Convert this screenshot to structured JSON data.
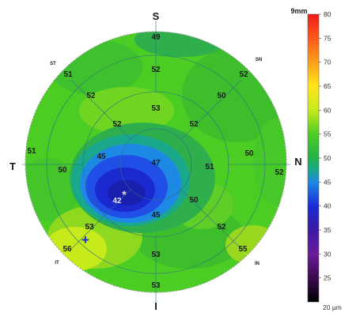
{
  "chart_data": {
    "type": "heatmap",
    "title": "",
    "scan_size_label": "9mm",
    "unit_label": "20 µm",
    "orientation": {
      "superior": "S",
      "inferior": "I",
      "temporal": "T",
      "nasal": "N",
      "superotemporal": "ST",
      "superonasal": "SN",
      "inferotemporal": "IT",
      "inferonasal": "IN"
    },
    "sector_values": {
      "outer_s": "49",
      "mid_s_upper": "52",
      "inner_s": "53",
      "ring_s": "52",
      "ring_s2": "52",
      "mid_st": "52",
      "outer_st": "51",
      "mid_sn": "50",
      "outer_sn": "52",
      "outer_t": "51",
      "mid_t": "50",
      "inner_t": "45",
      "center": "42",
      "inner_s_center": "47",
      "inner_n": "51",
      "mid_n": "50",
      "outer_n": "52",
      "inner_i": "45",
      "inner_n2": "50",
      "mid_it": "53",
      "outer_it": "56",
      "mid_in": "52",
      "outer_in": "55",
      "mid_i": "53",
      "outer_i": "53"
    },
    "colorbar": {
      "min": 20,
      "max": 80,
      "ticks": [
        "80",
        "75",
        "70",
        "65",
        "60",
        "55",
        "50",
        "45",
        "40",
        "35",
        "30",
        "25"
      ],
      "stops": [
        {
          "value": 20,
          "color": "#000000"
        },
        {
          "value": 25,
          "color": "#3a0a4e"
        },
        {
          "value": 30,
          "color": "#6a1b9a"
        },
        {
          "value": 35,
          "color": "#3b1aa6"
        },
        {
          "value": 40,
          "color": "#1a2bd6"
        },
        {
          "value": 45,
          "color": "#1e88e5"
        },
        {
          "value": 47.5,
          "color": "#1aa88c"
        },
        {
          "value": 50,
          "color": "#22b34a"
        },
        {
          "value": 55,
          "color": "#4ccd23"
        },
        {
          "value": 60,
          "color": "#c6ea1a"
        },
        {
          "value": 65,
          "color": "#ffe61a"
        },
        {
          "value": 70,
          "color": "#ff9f1a"
        },
        {
          "value": 75,
          "color": "#ff5a1a"
        },
        {
          "value": 80,
          "color": "#ee1a1a"
        }
      ]
    },
    "fovea_marker": "*",
    "plus_marker": "+"
  }
}
